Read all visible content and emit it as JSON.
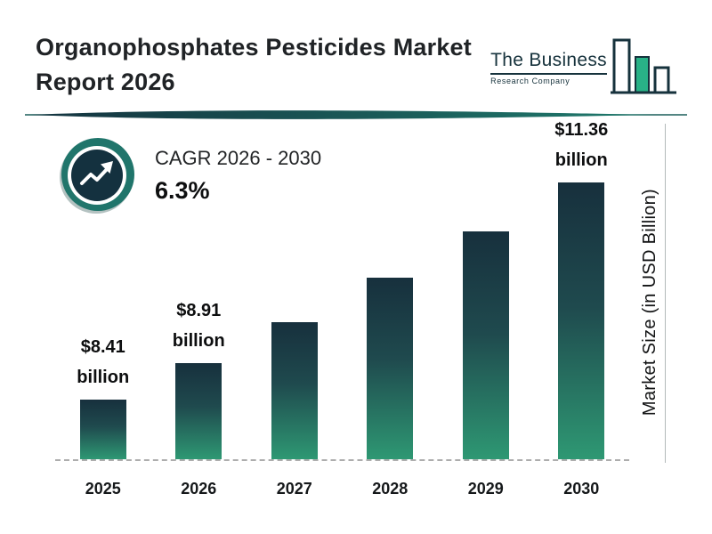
{
  "header": {
    "title_line1": "Organophosphates Pesticides Market",
    "title_line2": "Report 2026",
    "logo": {
      "name_line1": "The Business",
      "name_line2": "Research Company"
    }
  },
  "cagr": {
    "label": "CAGR 2026 - 2030",
    "value": "6.3%"
  },
  "chart_data": {
    "type": "bar",
    "title": "Organophosphates Pesticides Market Report 2026",
    "categories": [
      "2025",
      "2026",
      "2027",
      "2028",
      "2029",
      "2030"
    ],
    "values": [
      8.41,
      8.91,
      9.47,
      10.07,
      10.7,
      11.36
    ],
    "bar_labels": [
      {
        "category": "2025",
        "line1": "$8.41",
        "line2": "billion"
      },
      {
        "category": "2026",
        "line1": "$8.91",
        "line2": "billion"
      },
      {
        "category": "2030",
        "line1": "$11.36",
        "line2": "billion"
      }
    ],
    "xlabel": "",
    "ylabel": "Market Size (in USD Billion)",
    "ylim": [
      7.6,
      12.2
    ],
    "grid": false,
    "legend": false,
    "baseline_style": "dashed",
    "colors": {
      "bar_gradient_top": "#17303d",
      "bar_gradient_bottom": "#2e9873",
      "brand_teal": "#1f7a6c",
      "brand_navy": "#16323c",
      "logo_green": "#29b287",
      "badge_ring": "#20756b",
      "badge_center": "#14313f"
    }
  }
}
